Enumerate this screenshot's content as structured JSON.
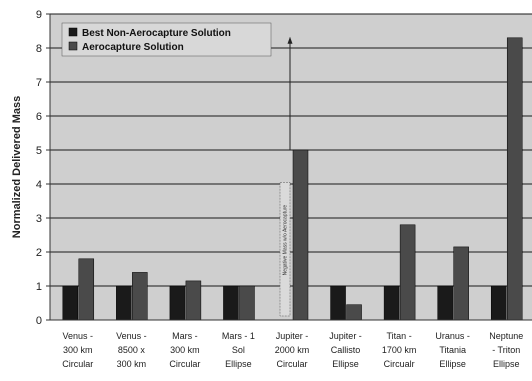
{
  "chart_data": {
    "type": "bar",
    "title": "",
    "xlabel": "",
    "ylabel": "Normalized Delivered Mass",
    "ylim": [
      0,
      9
    ],
    "yticks": [
      "0",
      "1",
      "2",
      "3",
      "4",
      "5",
      "6",
      "7",
      "8",
      "9"
    ],
    "grid": true,
    "legend_position": "top-left",
    "categories": [
      [
        "Venus -",
        "300 km",
        "Circular"
      ],
      [
        "Venus -",
        "8500 x",
        "300 km"
      ],
      [
        "Mars -",
        "300 km",
        "Circular"
      ],
      [
        "Mars - 1",
        "Sol",
        "Ellipse"
      ],
      [
        "Jupiter -",
        "2000 km",
        "Circular"
      ],
      [
        "Jupiter -",
        "Callisto",
        "Ellipse"
      ],
      [
        "Titan -",
        "1700 km",
        "Circualr"
      ],
      [
        "Uranus -",
        "Titania",
        "Ellipse"
      ],
      [
        "Neptune",
        "- Triton",
        "Ellipse"
      ]
    ],
    "series": [
      {
        "name": "Best Non-Aerocapture Solution",
        "color": "#1a1a1a",
        "values": [
          1,
          1,
          1,
          1,
          0,
          1,
          1,
          1,
          1
        ]
      },
      {
        "name": "Aerocapture Solution",
        "color": "#4a4a4a",
        "values": [
          1.8,
          1.4,
          1.15,
          1.0,
          5.0,
          0.45,
          2.8,
          2.15,
          8.3
        ]
      }
    ],
    "annotation": "Negative Mass w/o Aerocapture",
    "plot_background": "#cfcfcf",
    "gridline_color": "#1a1a1a"
  }
}
